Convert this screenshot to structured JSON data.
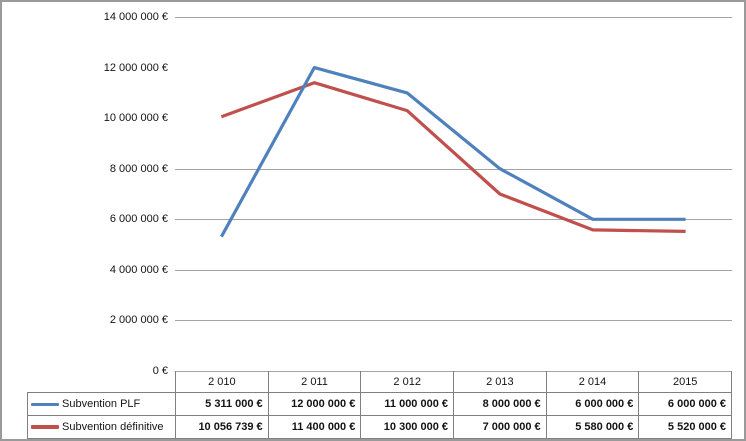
{
  "window": {
    "background": "#ffffff",
    "border_color": "#9a9a9a"
  },
  "chart_data": {
    "type": "line",
    "title": "",
    "xlabel": "",
    "ylabel": "",
    "categories": [
      "2 010",
      "2 011",
      "2 012",
      "2 013",
      "2 014",
      "2015"
    ],
    "series": [
      {
        "name": "Subvention PLF",
        "color": "#4F81BD",
        "values": [
          5311000,
          12000000,
          11000000,
          8000000,
          6000000,
          6000000
        ]
      },
      {
        "name": "Subvention définitive",
        "color": "#C0504D",
        "values": [
          10056739,
          11400000,
          10300000,
          7000000,
          5580000,
          5520000
        ]
      }
    ],
    "ylim": [
      0,
      14000000
    ],
    "y_ticks": [
      {
        "value": 0,
        "label": "0 €"
      },
      {
        "value": 2000000,
        "label": "2 000 000 €"
      },
      {
        "value": 4000000,
        "label": "4 000 000 €"
      },
      {
        "value": 6000000,
        "label": "6 000 000 €"
      },
      {
        "value": 8000000,
        "label": "8 000 000 €"
      },
      {
        "value": 10000000,
        "label": "10 000 000 €"
      },
      {
        "value": 12000000,
        "label": "12 000 000 €"
      },
      {
        "value": 14000000,
        "label": "14 000 000 €"
      }
    ],
    "gridline_values": [
      0,
      2000000,
      4000000,
      6000000,
      8000000,
      14000000
    ],
    "grid_color": "#a3a3a3",
    "legend_position": "data-table"
  },
  "data_table": {
    "border_color": "#808080",
    "header_cells": [
      "2 010",
      "2 011",
      "2 012",
      "2 013",
      "2 014",
      "2015"
    ],
    "rows": [
      {
        "name": "Subvention PLF",
        "key_color": "#4F81BD",
        "cells": [
          "5 311 000 €",
          "12 000 000 €",
          "11 000 000 €",
          "8 000 000 €",
          "6 000 000 €",
          "6 000 000 €"
        ]
      },
      {
        "name": "Subvention définitive",
        "key_color": "#C0504D",
        "cells": [
          "10 056 739 €",
          "11 400 000 €",
          "10 300 000 €",
          "7 000 000 €",
          "5 580 000 €",
          "5 520 000 €"
        ]
      }
    ]
  }
}
